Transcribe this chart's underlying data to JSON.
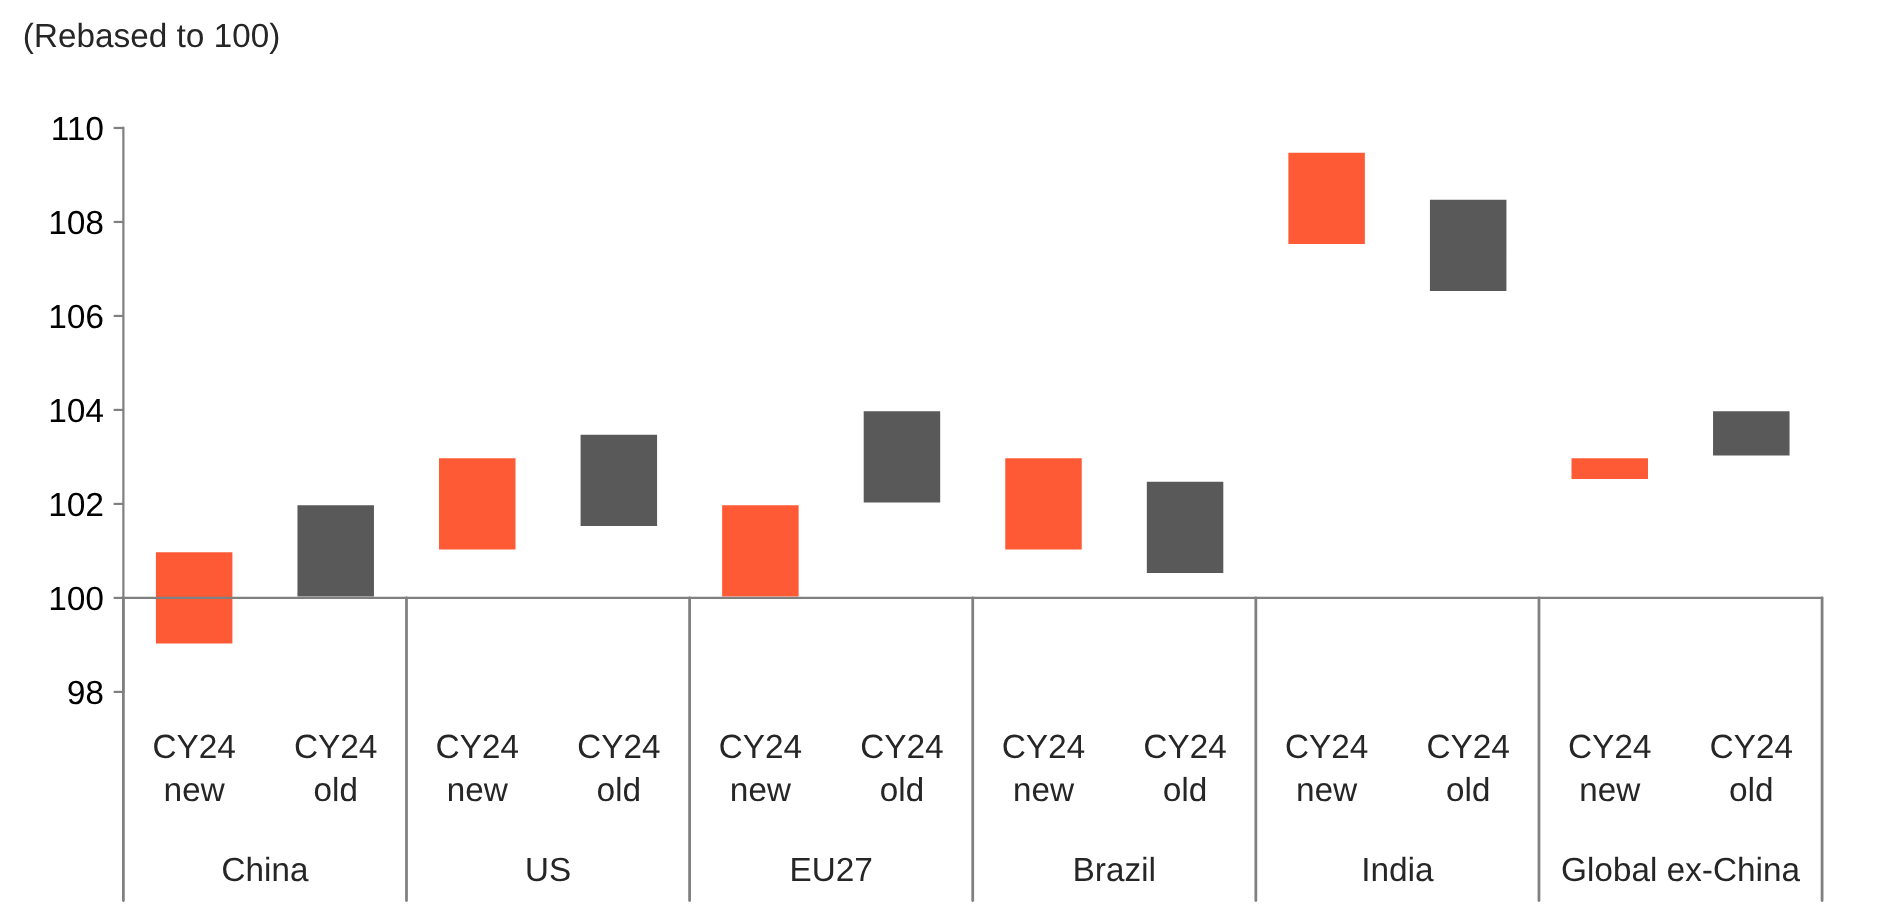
{
  "chart_data": {
    "type": "bar",
    "ylabel": "(Rebased to 100)",
    "categories": [
      "CY24\nnew",
      "CY24\nold",
      "CY24\nnew",
      "CY24\nold",
      "CY24\nnew",
      "CY24\nold",
      "CY24\nnew",
      "CY24\nold",
      "CY24\nnew",
      "CY24\nold",
      "CY24\nnew",
      "CY24\nold"
    ],
    "base": [
      99,
      100,
      101,
      101.5,
      100,
      102,
      101,
      100.5,
      107.5,
      106.5,
      102.5,
      103
    ],
    "values": [
      2,
      2,
      2,
      2,
      2,
      2,
      2,
      2,
      2,
      2,
      0.5,
      1
    ],
    "colors": [
      "#ff5a36",
      "#595959",
      "#ff5a36",
      "#595959",
      "#ff5a36",
      "#595959",
      "#ff5a36",
      "#595959",
      "#ff5a36",
      "#595959",
      "#ff5a36",
      "#595959"
    ],
    "annotations": [
      "China",
      "US",
      "EU27",
      "Brazil",
      "India",
      "Global ex-China"
    ],
    "ylim": [
      98,
      110
    ],
    "yticks": [
      98,
      100,
      102,
      104,
      106,
      108,
      110
    ],
    "legend": false
  }
}
